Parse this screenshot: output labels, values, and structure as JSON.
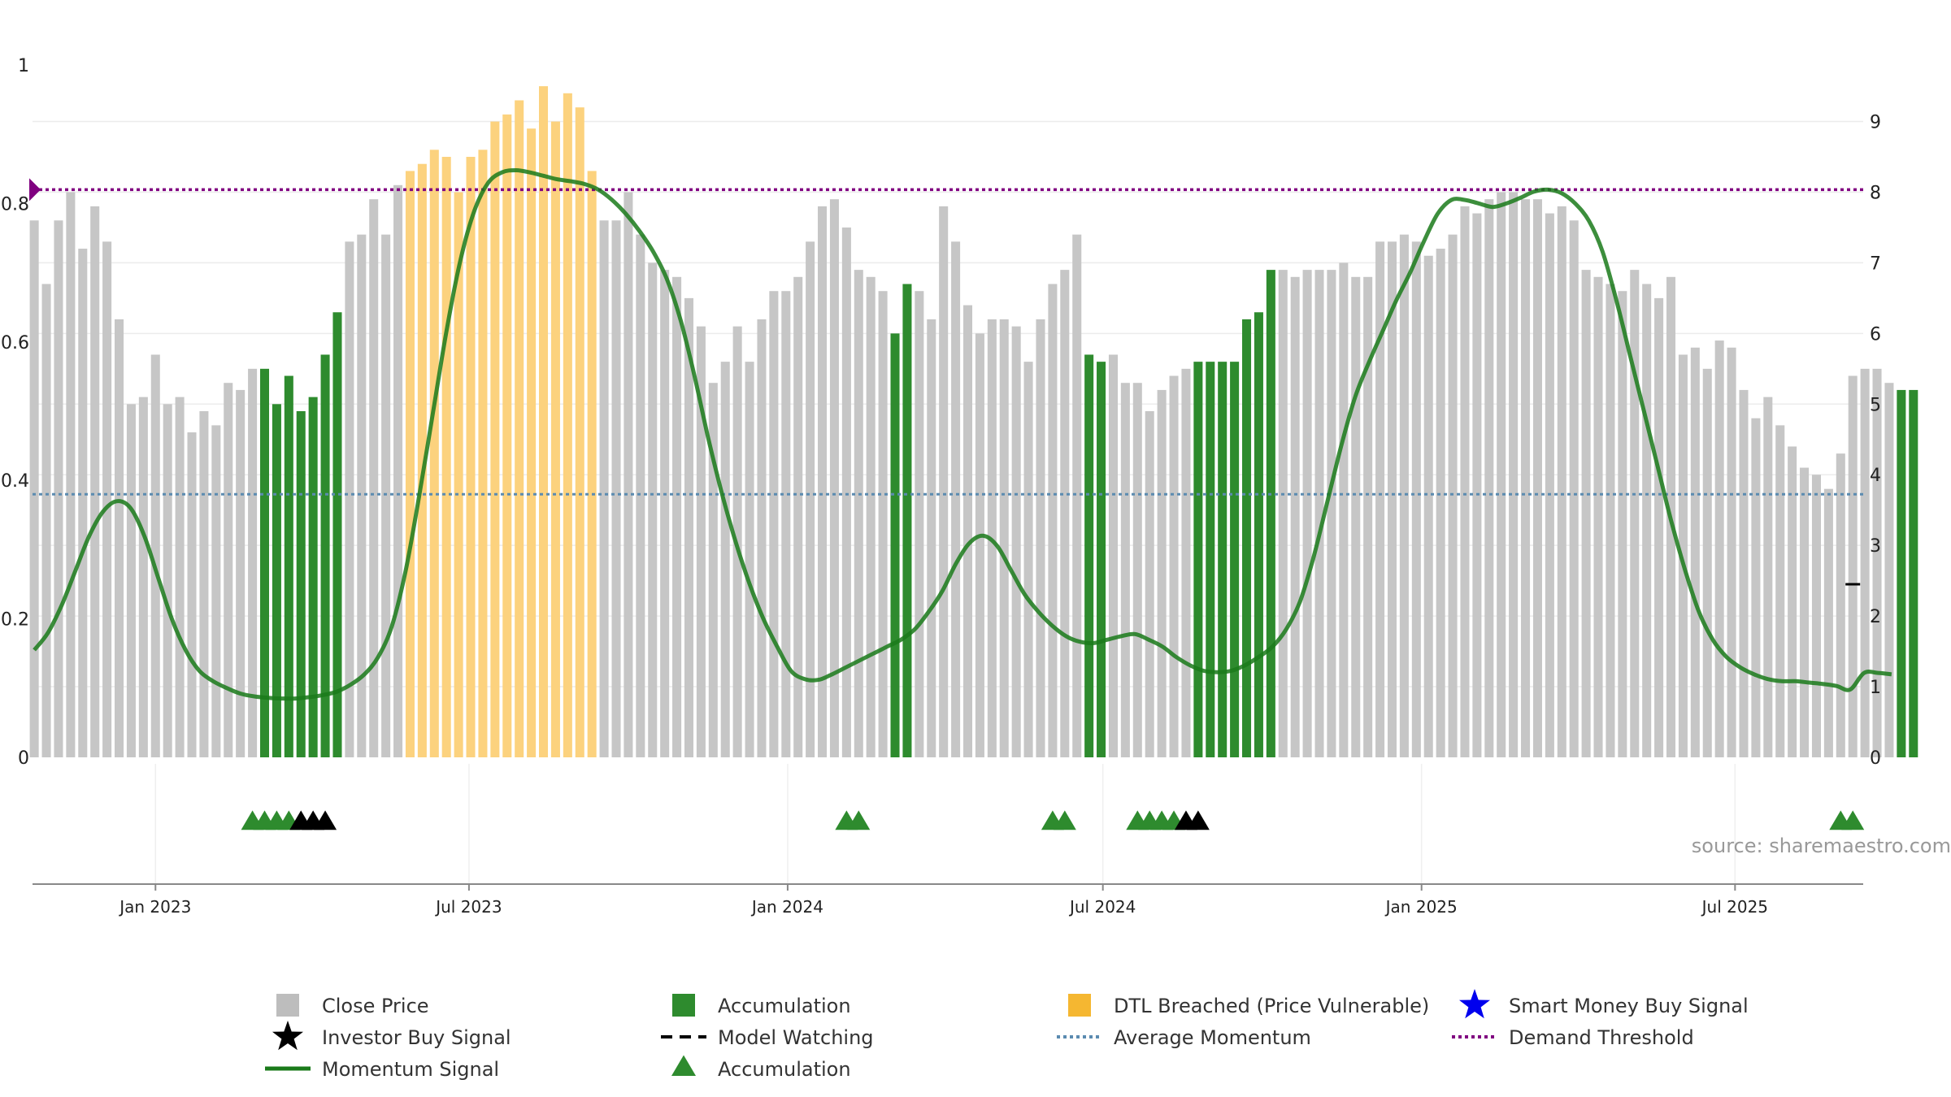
{
  "source_text": "source: sharemaestro.com",
  "colors": {
    "price_bar": "#c6c6c6",
    "accumulation": "#2e8b2e",
    "dtl_breached": "#fcd27e",
    "momentum": "#1a7a1a",
    "average_momentum": "#5b8bb0",
    "demand_threshold": "#800080",
    "smart_money": "#0000ee"
  },
  "legend": [
    {
      "label": "Close Price",
      "icon": "gray-square-icon"
    },
    {
      "label": "Accumulation",
      "icon": "green-square-icon"
    },
    {
      "label": "DTL Breached (Price Vulnerable)",
      "icon": "orange-square-icon"
    },
    {
      "label": "Smart Money Buy Signal",
      "icon": "blue-star-icon"
    },
    {
      "label": "Investor Buy Signal",
      "icon": "black-star-icon"
    },
    {
      "label": "Model Watching",
      "icon": "dashed-line-icon"
    },
    {
      "label": "Average Momentum",
      "icon": "blue-dotted-line-icon"
    },
    {
      "label": "Demand Threshold",
      "icon": "purple-dotted-line-icon"
    },
    {
      "label": "Momentum Signal",
      "icon": "green-line-icon"
    },
    {
      "label": "Accumulation",
      "icon": "green-triangle-icon"
    }
  ],
  "chart_data": {
    "type": "bar",
    "title": "",
    "x_axis": {
      "type": "date",
      "range": [
        "2022-10-22",
        "2025-09-13"
      ],
      "ticks": [
        "Jan 2023",
        "Jul 2023",
        "Jan 2024",
        "Jul 2024",
        "Jan 2025",
        "Jul 2025"
      ],
      "tick_dates": [
        "2023-01-01",
        "2023-07-01",
        "2024-01-01",
        "2024-07-01",
        "2025-01-01",
        "2025-07-01"
      ]
    },
    "y_left": {
      "range": [
        0,
        1
      ],
      "ticks": [
        "0",
        "0.2",
        "0.4",
        "0.6",
        "0.8",
        "1"
      ],
      "label": ""
    },
    "y_right": {
      "range": [
        0,
        9.8
      ],
      "ticks": [
        "0",
        "1",
        "2",
        "3",
        "4",
        "5",
        "6",
        "7",
        "8",
        "9"
      ],
      "label": ""
    },
    "grid": true,
    "start_date": "2022-10-23",
    "interval_days": 7,
    "close_price": [
      7.6,
      6.7,
      7.6,
      8.0,
      7.2,
      7.8,
      7.3,
      6.2,
      5.0,
      5.1,
      5.7,
      5.0,
      5.1,
      4.6,
      4.9,
      4.7,
      5.3,
      5.2,
      5.5,
      5.5,
      5.0,
      5.4,
      4.9,
      5.1,
      5.7,
      6.3,
      7.3,
      7.4,
      7.9,
      7.4,
      8.1,
      8.3,
      8.4,
      8.6,
      8.5,
      8.0,
      8.5,
      8.6,
      9.0,
      9.1,
      9.3,
      8.9,
      9.5,
      9.0,
      9.4,
      9.2,
      8.3,
      7.6,
      7.6,
      8.0,
      7.4,
      7.0,
      6.9,
      6.8,
      6.5,
      6.1,
      5.3,
      5.6,
      6.1,
      5.6,
      6.2,
      6.6,
      6.6,
      6.8,
      7.3,
      7.8,
      7.9,
      7.5,
      6.9,
      6.8,
      6.6,
      6.0,
      6.7,
      6.6,
      6.2,
      7.8,
      7.3,
      6.4,
      6.0,
      6.2,
      6.2,
      6.1,
      5.6,
      6.2,
      6.7,
      6.9,
      7.4,
      5.7,
      5.6,
      5.7,
      5.3,
      5.3,
      4.9,
      5.2,
      5.4,
      5.5,
      5.6,
      5.6,
      5.6,
      5.6,
      6.2,
      6.3,
      6.9,
      6.9,
      6.8,
      6.9,
      6.9,
      6.9,
      7.0,
      6.8,
      6.8,
      7.3,
      7.3,
      7.4,
      7.3,
      7.1,
      7.2,
      7.4,
      7.8,
      7.7,
      7.9,
      8.0,
      8.0,
      7.9,
      7.9,
      7.7,
      7.8,
      7.6,
      6.9,
      6.8,
      6.7,
      6.6,
      6.9,
      6.7,
      6.5,
      6.8,
      5.7,
      5.8,
      5.5,
      5.9,
      5.8,
      5.2,
      4.8,
      5.1,
      4.7,
      4.4,
      4.1,
      4.0,
      3.8,
      4.3,
      5.4,
      5.5,
      5.5,
      5.3,
      5.2,
      5.2
    ],
    "bar_category": [
      "p",
      "p",
      "p",
      "p",
      "p",
      "p",
      "p",
      "p",
      "p",
      "p",
      "p",
      "p",
      "p",
      "p",
      "p",
      "p",
      "p",
      "p",
      "p",
      "a",
      "a",
      "a",
      "a",
      "a",
      "a",
      "a",
      "p",
      "p",
      "p",
      "p",
      "p",
      "d",
      "d",
      "d",
      "d",
      "d",
      "d",
      "d",
      "d",
      "d",
      "d",
      "d",
      "d",
      "d",
      "d",
      "d",
      "d",
      "p",
      "p",
      "p",
      "p",
      "p",
      "p",
      "p",
      "p",
      "p",
      "p",
      "p",
      "p",
      "p",
      "p",
      "p",
      "p",
      "p",
      "p",
      "p",
      "p",
      "p",
      "p",
      "p",
      "p",
      "a",
      "a",
      "p",
      "p",
      "p",
      "p",
      "p",
      "p",
      "p",
      "p",
      "p",
      "p",
      "p",
      "p",
      "p",
      "p",
      "a",
      "a",
      "p",
      "p",
      "p",
      "p",
      "p",
      "p",
      "p",
      "a",
      "a",
      "a",
      "a",
      "a",
      "a",
      "a",
      "p",
      "p",
      "p",
      "p",
      "p",
      "p",
      "p",
      "p",
      "p",
      "p",
      "p",
      "p",
      "p",
      "p",
      "p",
      "p",
      "p",
      "p",
      "p",
      "p",
      "p",
      "p",
      "p",
      "p",
      "p",
      "p",
      "p",
      "p",
      "p",
      "p",
      "p",
      "p",
      "p",
      "p",
      "p",
      "p",
      "p",
      "p",
      "p",
      "p",
      "p",
      "p",
      "p",
      "p",
      "p",
      "p",
      "p",
      "p",
      "p",
      "p",
      "p",
      "a",
      "a",
      "p"
    ],
    "momentum": [
      0.155,
      0.18,
      0.22,
      0.27,
      0.32,
      0.355,
      0.37,
      0.36,
      0.32,
      0.26,
      0.2,
      0.155,
      0.125,
      0.11,
      0.1,
      0.092,
      0.088,
      0.086,
      0.085,
      0.085,
      0.087,
      0.09,
      0.095,
      0.105,
      0.12,
      0.145,
      0.19,
      0.27,
      0.38,
      0.5,
      0.62,
      0.72,
      0.79,
      0.83,
      0.845,
      0.848,
      0.845,
      0.84,
      0.835,
      0.832,
      0.828,
      0.82,
      0.805,
      0.785,
      0.76,
      0.73,
      0.69,
      0.63,
      0.55,
      0.46,
      0.38,
      0.31,
      0.25,
      0.2,
      0.16,
      0.125,
      0.113,
      0.112,
      0.12,
      0.13,
      0.14,
      0.15,
      0.16,
      0.17,
      0.185,
      0.21,
      0.24,
      0.28,
      0.31,
      0.32,
      0.305,
      0.27,
      0.235,
      0.21,
      0.19,
      0.175,
      0.167,
      0.165,
      0.17,
      0.175,
      0.178,
      0.17,
      0.16,
      0.145,
      0.133,
      0.125,
      0.123,
      0.125,
      0.133,
      0.145,
      0.16,
      0.185,
      0.225,
      0.29,
      0.37,
      0.45,
      0.52,
      0.57,
      0.615,
      0.66,
      0.7,
      0.745,
      0.785,
      0.805,
      0.805,
      0.8,
      0.795,
      0.8,
      0.808,
      0.817,
      0.82,
      0.815,
      0.8,
      0.775,
      0.73,
      0.66,
      0.58,
      0.5,
      0.42,
      0.34,
      0.27,
      0.21,
      0.17,
      0.145,
      0.13,
      0.12,
      0.113,
      0.11,
      0.11,
      0.108,
      0.106,
      0.103,
      0.098,
      0.122,
      0.122,
      0.12
    ],
    "momentum_start_index": 0,
    "momentum_step": 1.1348,
    "average_momentum": 0.38,
    "demand_threshold": 0.82,
    "model_watching": {
      "date": "2025-09-07",
      "value": 2.45
    },
    "accumulation_markers": [
      "2023-02-26",
      "2023-03-05",
      "2023-03-12",
      "2023-03-19",
      "2024-02-04",
      "2024-02-11",
      "2024-06-02",
      "2024-06-09",
      "2024-07-21",
      "2024-07-28",
      "2024-08-04",
      "2024-08-11",
      "2025-08-31",
      "2025-09-07"
    ],
    "investor_buy_signals": [
      "2023-03-26",
      "2023-04-02",
      "2023-04-09",
      "2024-08-18",
      "2024-08-25"
    ],
    "smart_money_buy_signals": []
  }
}
